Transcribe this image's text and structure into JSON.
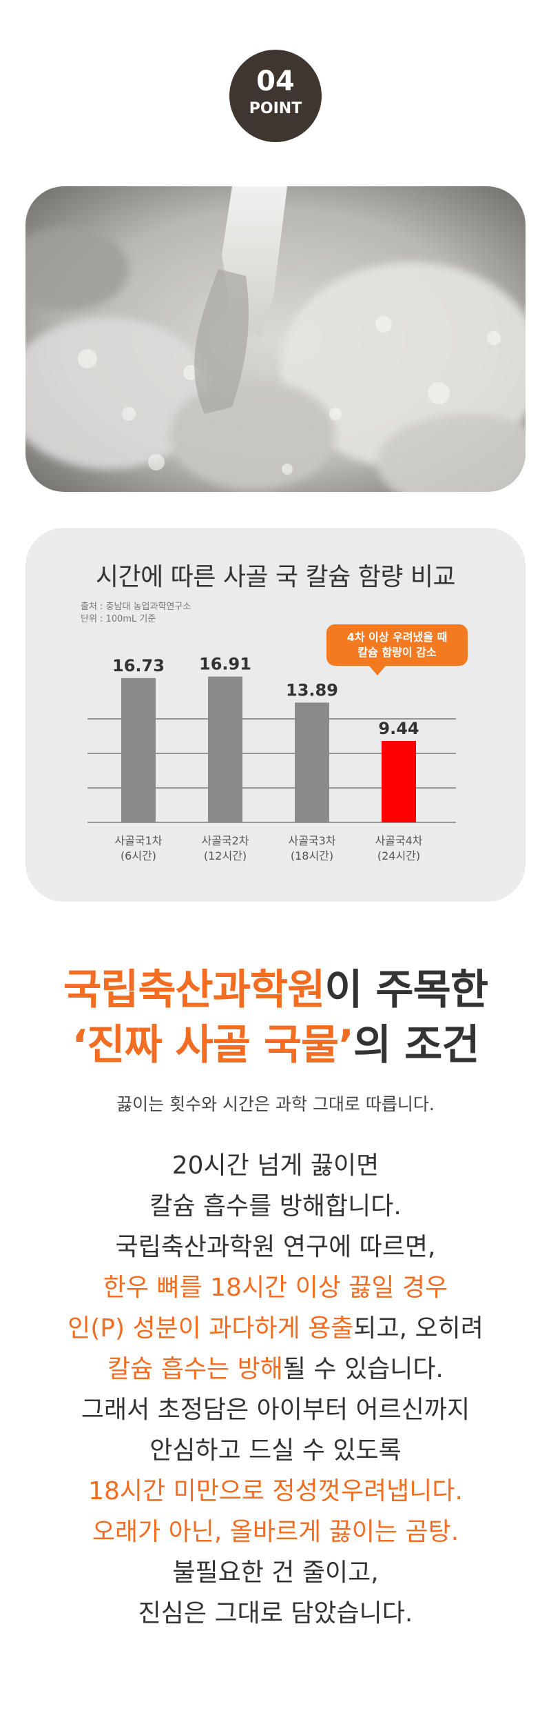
{
  "badge": {
    "number": "04",
    "label": "POINT"
  },
  "chart": {
    "title": "시간에 따른 사골 국 칼슘 함량 비교",
    "source": "출처 : 충남대 농업과학연구소",
    "unit": "단위 : 100mL 기준",
    "callout": [
      "4차 이상 우려냈을 때",
      "칼슘 함량이 감소"
    ],
    "colors": {
      "normal": "#8a8a8a",
      "highlight": "#ff0000",
      "callout": "#f47a21"
    }
  },
  "chart_data": {
    "type": "bar",
    "title": "시간에 따른 사골 국 칼슘 함량 비교",
    "categories": [
      "사골국1차",
      "사골국2차",
      "사골국3차",
      "사골국4차"
    ],
    "category_notes": [
      "(6시간)",
      "(12시간)",
      "(18시간)",
      "(24시간)"
    ],
    "values": [
      16.73,
      16.91,
      13.89,
      9.44
    ],
    "value_labels": [
      "16.73",
      "16.91",
      "13.89",
      "9.44"
    ],
    "highlight_index": 3,
    "grid": true
  },
  "headline": {
    "line1_orange": "국립축산과학원",
    "line1_rest": "이 주목한",
    "line2_orange": "‘진짜 사골 국물’",
    "line2_rest": "의 조건"
  },
  "subline": "끓이는 횟수와 시간은 과학 그대로 따릅니다.",
  "body": [
    {
      "text": "20시간 넘게 끓이면",
      "orange": ""
    },
    {
      "text": "칼슘 흡수를 방해합니다.",
      "orange": ""
    },
    {
      "text": "국립축산과학원 연구에 따르면,",
      "orange": ""
    },
    {
      "orange": "한우 뼈를 18시간 이상 끓일 경우",
      "text": ""
    },
    {
      "orange": "인(P) 성분이 과다하게 용출",
      "text": "되고, 오히려"
    },
    {
      "orange": "칼슘 흡수는 방해",
      "text": "될 수 있습니다."
    },
    {
      "text": "그래서 초정담은 아이부터 어르신까지",
      "orange": ""
    },
    {
      "text": "안심하고 드실 수 있도록",
      "orange": ""
    },
    {
      "orange": "18시간 미만으로 정성껏우려냅니다.",
      "text": ""
    },
    {
      "orange": "오래가 아닌, 올바르게 끓이는 곰탕.",
      "text": ""
    },
    {
      "text": "불필요한 건 줄이고,",
      "orange": ""
    },
    {
      "text": "진심은 그대로 담았습니다.",
      "orange": ""
    }
  ]
}
